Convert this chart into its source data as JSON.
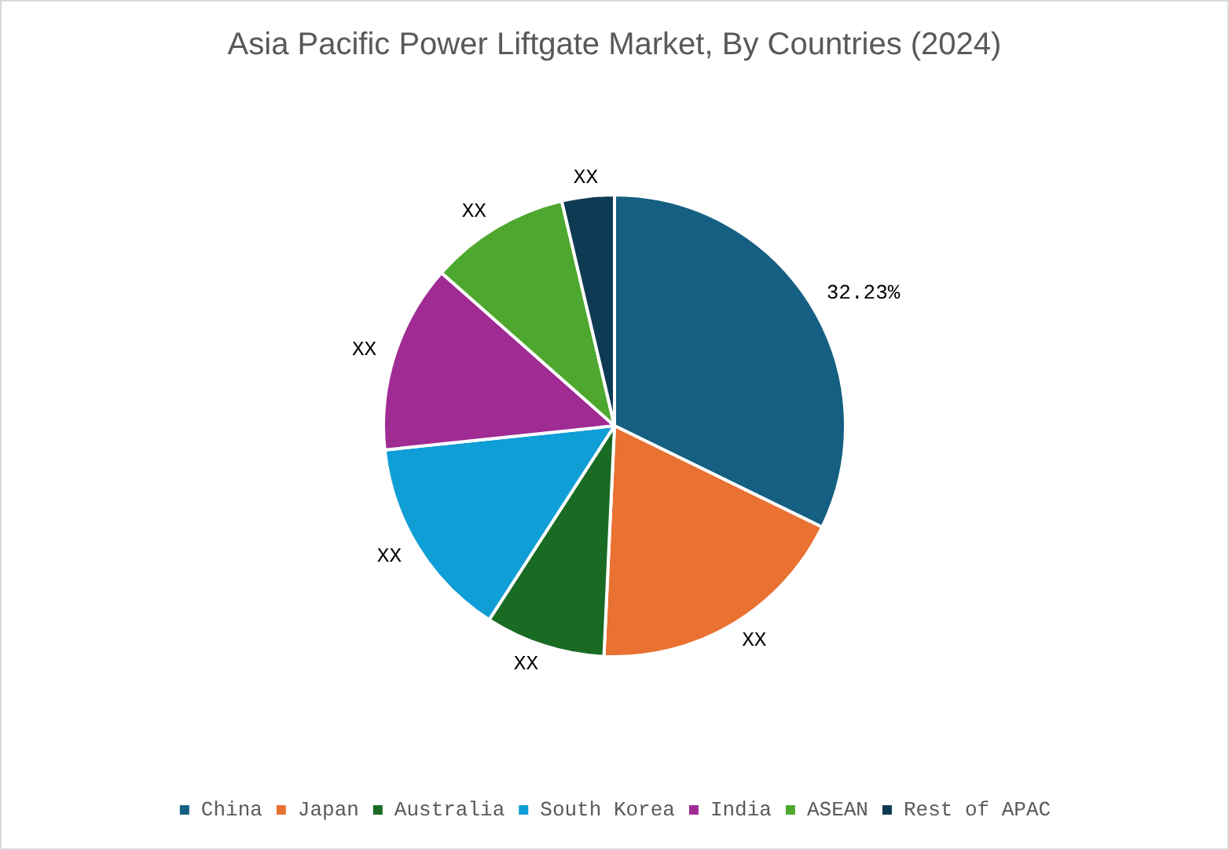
{
  "chart_data": {
    "type": "pie",
    "title": "Asia Pacific Power Liftgate Market, By Countries (2024)",
    "categories": [
      "China",
      "Japan",
      "Australia",
      "South Korea",
      "India",
      "ASEAN",
      "Rest of APAC"
    ],
    "values": [
      32.23,
      18.5,
      8.4,
      14.2,
      13.2,
      9.8,
      3.67
    ],
    "colors": [
      "#156082",
      "#e97132",
      "#196b24",
      "#0f9ed5",
      "#a02b93",
      "#4ea72e",
      "#0e3a53"
    ],
    "value_labels": [
      "32.23%",
      "XX",
      "XX",
      "XX",
      "XX",
      "XX",
      "XX"
    ],
    "legend": "bottom"
  }
}
